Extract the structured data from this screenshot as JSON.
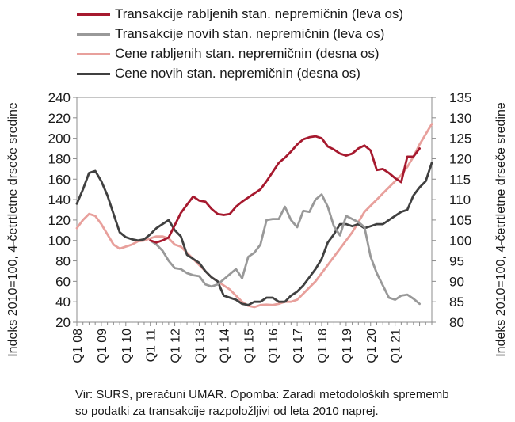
{
  "chart_data": {
    "type": "line",
    "xlabel": "",
    "ylabel_left": "Indeks 2010=100, 4-četrtletne drseče sredine",
    "ylabel_right": "Indeks 2010=100, 4-četrtletne drseče sredine",
    "ylim_left": [
      20,
      240
    ],
    "ylim_right": [
      80,
      135
    ],
    "yticks_left": [
      "20",
      "40",
      "60",
      "80",
      "100",
      "120",
      "140",
      "160",
      "180",
      "200",
      "220",
      "240"
    ],
    "yticks_right": [
      "80",
      "85",
      "90",
      "95",
      "100",
      "105",
      "110",
      "115",
      "120",
      "125",
      "130",
      "135"
    ],
    "x_tick_labels": [
      "Q1 08",
      "Q1 09",
      "Q1 10",
      "Q1 11",
      "Q1 12",
      "Q1 13",
      "Q1 14",
      "Q1 15",
      "Q1 16",
      "Q1 17",
      "Q1 18",
      "Q1 19",
      "Q1 20",
      "Q1 21"
    ],
    "x_start_quarter_index": 0,
    "grid": false,
    "legend_position": "top",
    "series": [
      {
        "name": "Transakcije rabljenih stan. nepremičnin (leva os)",
        "axis": "left",
        "color": "#a6192e",
        "start_index": 12,
        "values": [
          100,
          98,
          100,
          103,
          115,
          127,
          135,
          143,
          139,
          138,
          131,
          126,
          125,
          126,
          133,
          138,
          142,
          146,
          150,
          158,
          167,
          176,
          181,
          187,
          194,
          199,
          201,
          202,
          200,
          192,
          189,
          185,
          183,
          185,
          190,
          193,
          188,
          169,
          170,
          166,
          161,
          157,
          182,
          182,
          190
        ]
      },
      {
        "name": "Transakcije novih stan. nepremičnin (leva os)",
        "axis": "left",
        "color": "#999999",
        "start_index": 12,
        "values": [
          100,
          96,
          90,
          80,
          73,
          72,
          68,
          66,
          65,
          57,
          55,
          57,
          62,
          67,
          72,
          63,
          84,
          88,
          96,
          120,
          121,
          121,
          133,
          120,
          113,
          129,
          128,
          140,
          145,
          133,
          114,
          105,
          124,
          121,
          118,
          113,
          84,
          68,
          56,
          44,
          42,
          46,
          47,
          43,
          38
        ]
      },
      {
        "name": "Cene rabljenih stan. nepremičnin (desna os)",
        "axis": "right",
        "color": "#e8a09c",
        "start_index": 0,
        "values": [
          103,
          105,
          106.5,
          106,
          104,
          101.5,
          99,
          98,
          98.5,
          99,
          99.8,
          100,
          100.5,
          101,
          101,
          100.5,
          99,
          98.5,
          97,
          95.5,
          94,
          92.5,
          91,
          90,
          89,
          88,
          86.5,
          85,
          84,
          83.7,
          84.2,
          84.3,
          84.2,
          84.5,
          85,
          85,
          85.5,
          87,
          88.5,
          90,
          92,
          94,
          96,
          98,
          100,
          102,
          104.5,
          107,
          108.5,
          110,
          111.5,
          113,
          114.5,
          116,
          118,
          120.5,
          123.5,
          126,
          128.5
        ]
      },
      {
        "name": "Cene novih stan. nepremičnin (desna os)",
        "axis": "right",
        "color": "#404040",
        "start_index": 0,
        "values": [
          109,
          112.5,
          116.5,
          117,
          114.5,
          111,
          106.5,
          102,
          100.8,
          100.3,
          100,
          100.3,
          101.5,
          103,
          104,
          105,
          102.5,
          101,
          96.5,
          95.5,
          94.5,
          92.5,
          91,
          90,
          86.5,
          86,
          85.5,
          84.5,
          84.2,
          85,
          85,
          86,
          86,
          85,
          85,
          86.5,
          87.5,
          89,
          91,
          93,
          95.5,
          99.5,
          101.5,
          104,
          104,
          103.5,
          104,
          103,
          103.5,
          104,
          104,
          105,
          106,
          107,
          107.5,
          111,
          113,
          114.5,
          119
        ]
      }
    ]
  },
  "note": {
    "line1": "Vir: SURS, preračuni UMAR. Opomba: Zaradi metodoloških sprememb",
    "line2": "so podatki za transakcije razpoložljivi od leta 2010 naprej."
  }
}
